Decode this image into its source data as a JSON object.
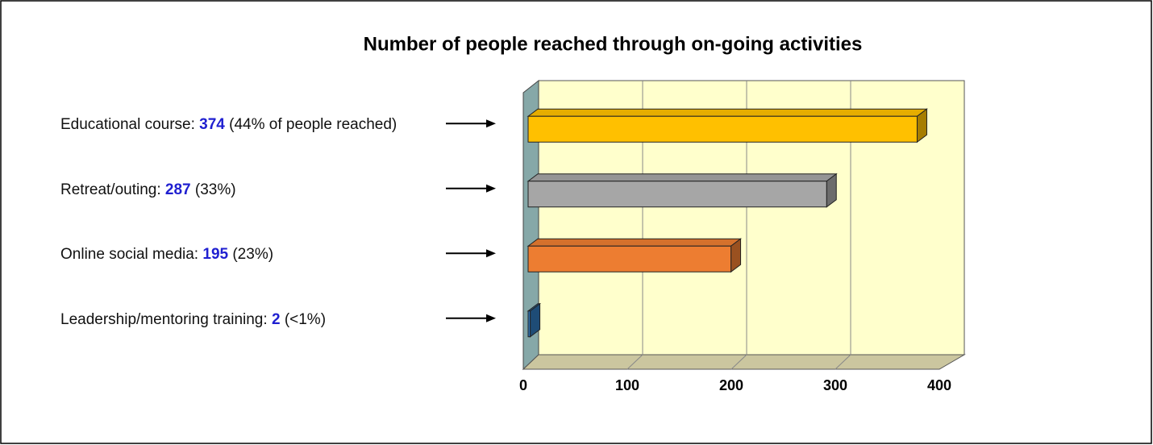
{
  "chart_data": {
    "type": "bar3d-horizontal",
    "title": "Number of people reached through on-going activities",
    "categories": [
      "Educational course:",
      "Retreat/outing:",
      "Online social media:",
      "Leadership/mentoring training:"
    ],
    "values": [
      374,
      287,
      195,
      2
    ],
    "shares": [
      "(44% of people reached)",
      "(33%)",
      "(23%)",
      "(<1%)"
    ],
    "colors": [
      "#ffc000",
      "#a6a6a6",
      "#ed7d31",
      "#2e75b6"
    ],
    "xlim": [
      0,
      400
    ],
    "xticks": [
      0,
      100,
      200,
      300,
      400
    ],
    "grid": true
  }
}
